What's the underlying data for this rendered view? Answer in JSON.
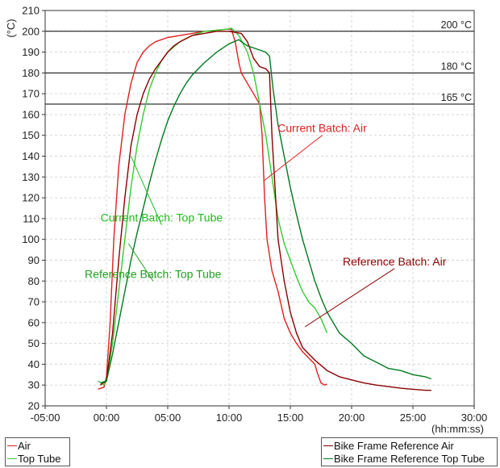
{
  "chart_data": {
    "type": "line",
    "xlabel": "(hh:mm:ss)",
    "ylabel": "(°C)",
    "xlim": [
      -5,
      30
    ],
    "ylim": [
      20,
      210
    ],
    "x_ticks": [
      {
        "v": -5,
        "label": "-05:00"
      },
      {
        "v": 0,
        "label": "00:00"
      },
      {
        "v": 5,
        "label": "05:00"
      },
      {
        "v": 10,
        "label": "10:00"
      },
      {
        "v": 15,
        "label": "15:00"
      },
      {
        "v": 20,
        "label": "20:00"
      },
      {
        "v": 25,
        "label": "25:00"
      },
      {
        "v": 30,
        "label": "30:00"
      }
    ],
    "y_ticks": [
      20,
      30,
      40,
      50,
      60,
      70,
      80,
      90,
      100,
      110,
      120,
      130,
      140,
      150,
      160,
      170,
      180,
      190,
      200,
      210
    ],
    "grid": true,
    "reference_lines": [
      {
        "y": 200,
        "label": "200 °C"
      },
      {
        "y": 180,
        "label": "180 °C"
      },
      {
        "y": 165,
        "label": "165 °C"
      }
    ],
    "series": [
      {
        "name": "Air",
        "color": "#e02020",
        "points": [
          [
            -0.7,
            28
          ],
          [
            -0.2,
            29
          ],
          [
            0,
            34
          ],
          [
            0.3,
            60
          ],
          [
            0.6,
            100
          ],
          [
            1,
            135
          ],
          [
            1.5,
            160
          ],
          [
            2,
            175
          ],
          [
            2.5,
            185
          ],
          [
            3,
            190
          ],
          [
            3.5,
            193
          ],
          [
            4,
            195
          ],
          [
            5,
            197
          ],
          [
            6,
            198
          ],
          [
            7,
            199
          ],
          [
            8,
            200
          ],
          [
            9,
            200.5
          ],
          [
            9.8,
            201
          ],
          [
            10.2,
            201
          ],
          [
            10.5,
            195
          ],
          [
            10.8,
            185
          ],
          [
            11,
            180
          ],
          [
            11.5,
            175
          ],
          [
            12,
            170
          ],
          [
            12.5,
            165
          ],
          [
            12.7,
            150
          ],
          [
            12.9,
            120
          ],
          [
            13.1,
            100
          ],
          [
            13.5,
            85
          ],
          [
            14,
            75
          ],
          [
            14.5,
            62
          ],
          [
            15,
            55
          ],
          [
            15.5,
            50
          ],
          [
            16,
            46
          ],
          [
            16.5,
            43
          ],
          [
            17,
            40
          ],
          [
            17.2,
            36
          ],
          [
            17.5,
            31
          ],
          [
            17.8,
            30
          ],
          [
            18,
            30.5
          ]
        ]
      },
      {
        "name": "Top Tube",
        "color": "#33cc33",
        "points": [
          [
            -0.7,
            32
          ],
          [
            -0.2,
            30
          ],
          [
            0,
            32
          ],
          [
            0.5,
            50
          ],
          [
            1,
            75
          ],
          [
            1.5,
            100
          ],
          [
            2,
            125
          ],
          [
            2.5,
            145
          ],
          [
            3,
            160
          ],
          [
            3.5,
            172
          ],
          [
            4,
            180
          ],
          [
            4.5,
            186
          ],
          [
            5,
            190
          ],
          [
            6,
            195
          ],
          [
            7,
            198
          ],
          [
            8,
            200
          ],
          [
            9,
            200.5
          ],
          [
            9.8,
            201
          ],
          [
            10.2,
            201.5
          ],
          [
            10.8,
            198
          ],
          [
            11.5,
            190
          ],
          [
            12,
            180
          ],
          [
            12.5,
            165
          ],
          [
            13,
            150
          ],
          [
            13.5,
            130
          ],
          [
            14,
            110
          ],
          [
            14.5,
            98
          ],
          [
            15,
            90
          ],
          [
            15.5,
            82
          ],
          [
            16,
            75
          ],
          [
            16.5,
            70
          ],
          [
            17,
            67
          ],
          [
            17.5,
            62
          ],
          [
            18,
            55
          ]
        ]
      },
      {
        "name": "Bike Frame Reference Air",
        "color": "#8b0000",
        "points": [
          [
            -0.5,
            30
          ],
          [
            0,
            32
          ],
          [
            0.5,
            55
          ],
          [
            1,
            90
          ],
          [
            1.5,
            120
          ],
          [
            2,
            145
          ],
          [
            2.5,
            160
          ],
          [
            3,
            170
          ],
          [
            3.5,
            177
          ],
          [
            4,
            182
          ],
          [
            4.5,
            186
          ],
          [
            5,
            190
          ],
          [
            5.5,
            193
          ],
          [
            6,
            195
          ],
          [
            7,
            198
          ],
          [
            8,
            199
          ],
          [
            9,
            200
          ],
          [
            10,
            200
          ],
          [
            11,
            199
          ],
          [
            11.5,
            195
          ],
          [
            12,
            187
          ],
          [
            12.5,
            183
          ],
          [
            13,
            182
          ],
          [
            13.3,
            180
          ],
          [
            13.5,
            150
          ],
          [
            13.8,
            120
          ],
          [
            14,
            100
          ],
          [
            14.5,
            80
          ],
          [
            15,
            65
          ],
          [
            15.5,
            55
          ],
          [
            16,
            48
          ],
          [
            17,
            42
          ],
          [
            18,
            37
          ],
          [
            19,
            34
          ],
          [
            20,
            32.5
          ],
          [
            21,
            31
          ],
          [
            22,
            30
          ],
          [
            24,
            28.5
          ],
          [
            26,
            27.5
          ],
          [
            26.5,
            27.5
          ]
        ]
      },
      {
        "name": "Bike Frame Reference Top Tube",
        "color": "#007a1f",
        "points": [
          [
            -0.5,
            31
          ],
          [
            0,
            32
          ],
          [
            0.5,
            45
          ],
          [
            1,
            60
          ],
          [
            1.5,
            75
          ],
          [
            2,
            90
          ],
          [
            2.5,
            103
          ],
          [
            3,
            115
          ],
          [
            3.5,
            127
          ],
          [
            4,
            138
          ],
          [
            4.5,
            148
          ],
          [
            5,
            157
          ],
          [
            5.5,
            164
          ],
          [
            6,
            170
          ],
          [
            6.5,
            175
          ],
          [
            7,
            179
          ],
          [
            8,
            185
          ],
          [
            9,
            190
          ],
          [
            10,
            194
          ],
          [
            10.8,
            196
          ],
          [
            11,
            195
          ],
          [
            11.5,
            193
          ],
          [
            12,
            192
          ],
          [
            12.5,
            191
          ],
          [
            13,
            190
          ],
          [
            13.3,
            188
          ],
          [
            13.6,
            172
          ],
          [
            14,
            155
          ],
          [
            14.5,
            140
          ],
          [
            15,
            125
          ],
          [
            15.5,
            112
          ],
          [
            16,
            100
          ],
          [
            16.5,
            90
          ],
          [
            17,
            80
          ],
          [
            17.5,
            72
          ],
          [
            18,
            65
          ],
          [
            19,
            55
          ],
          [
            20,
            50
          ],
          [
            21,
            44
          ],
          [
            22,
            41
          ],
          [
            23,
            38
          ],
          [
            24,
            37
          ],
          [
            25,
            35
          ],
          [
            26,
            34
          ],
          [
            26.5,
            33
          ]
        ]
      }
    ],
    "annotations": [
      {
        "text": "Current Batch: Air",
        "color": "#e02020",
        "label_at": [
          17.6,
          150
        ],
        "tip_at": [
          12.8,
          128
        ]
      },
      {
        "text": "Current Batch: Top Tube",
        "color": "#22bb22",
        "label_at": [
          4.5,
          107
        ],
        "tip_at": [
          2,
          140
        ]
      },
      {
        "text": "Reference Batch: Top Tube",
        "color": "#22a022",
        "label_at": [
          3.8,
          80
        ],
        "tip_at": [
          1.8,
          98
        ]
      },
      {
        "text": "Reference Batch: Air",
        "color": "#8b0000",
        "label_at": [
          23.5,
          86
        ],
        "tip_at": [
          16.2,
          58
        ]
      }
    ],
    "legend_left": [
      "Air",
      "Top Tube"
    ],
    "legend_right": [
      "Bike Frame Reference Air",
      "Bike Frame Reference Top Tube"
    ]
  }
}
